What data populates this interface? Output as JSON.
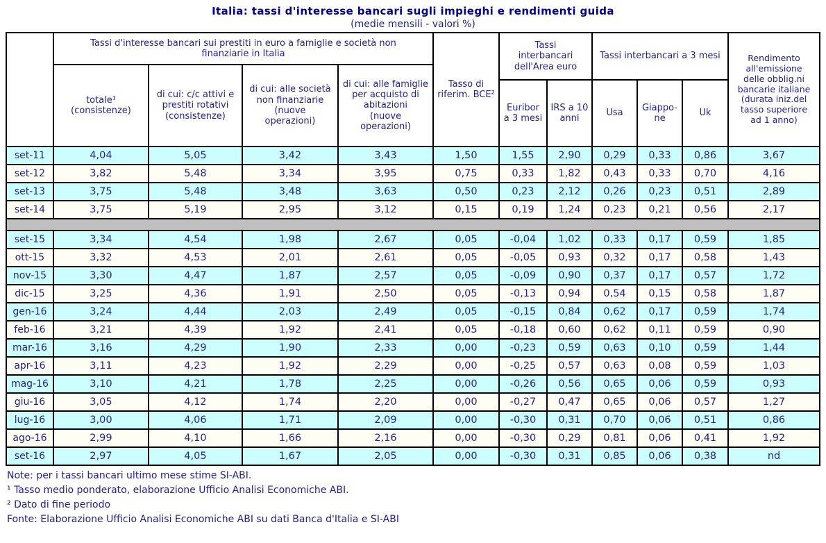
{
  "title": "Italia: tassi d'interesse bancari sugli impieghi e rendimenti guida",
  "subtitle": "(medie mensili - valori %)",
  "colors": {
    "title_navy": "#00008c",
    "text_navy": "#22228e",
    "row_highlight": "#ccffff",
    "row_plain": "#fefef4",
    "separator_gray": "#c0c0c0",
    "border_black": "#000000"
  },
  "header": {
    "group_loans": "Tassi d'interesse bancari sui prestiti in euro a famiglie e società non\nfinanziarie in Italia",
    "totale": "totale¹\n(consistenze)",
    "cc_attivi": "di cui: c/c attivi e\nprestiti rotativi\n(consistenze)",
    "societa": "di cui: alle società\nnon finanziarie\n(nuove\noperazioni)",
    "famiglie": "di cui: alle famiglie\nper acquisto di\nabitazioni\n(nuove\noperazioni)",
    "bce": "Tasso di\nriferim. BCE²",
    "group_euro": "Tassi\ninterbancari\ndell'Area euro",
    "euribor": "Euribor\na 3 mesi",
    "irs": "IRS a 10\nanni",
    "group_3m": "Tassi interbancari a 3 mesi",
    "usa": "Usa",
    "giappone": "Giappo-\nne",
    "uk": "Uk",
    "rendimento": "Rendimento\nall'emissione\ndelle obblig.ni\nbancarie italiane\n(durata iniz.del\ntasso superiore\nad 1 anno)"
  },
  "notes": [
    "Note: per i tassi bancari ultimo mese stime SI-ABI.",
    "¹ Tasso medio ponderato, elaborazione Ufficio Analisi Economiche ABI.",
    "² Dato di fine periodo",
    "Fonte: Elaborazione Ufficio Analisi Economiche ABI su dati Banca d'Italia e SI-ABI"
  ],
  "chart_data": {
    "type": "table",
    "title": "Italia: tassi d'interesse bancari sugli impieghi e rendimenti guida",
    "subtitle": "(medie mensili - valori %)",
    "columns": [
      "totale¹ (consistenze)",
      "di cui: c/c attivi e prestiti rotativi (consistenze)",
      "di cui: alle società non finanziarie (nuove operazioni)",
      "di cui: alle famiglie per acquisto di abitazioni (nuove operazioni)",
      "Tasso di riferim. BCE²",
      "Euribor a 3 mesi",
      "IRS a 10 anni",
      "Usa",
      "Giappo-ne",
      "Uk",
      "Rendimento all'emissione delle obblig.ni bancarie italiane (durata iniz.del tasso superiore ad 1 anno)"
    ],
    "rows_annual": [
      {
        "label": "set-11",
        "values": [
          "4,04",
          "5,05",
          "3,42",
          "3,43",
          "1,50",
          "1,55",
          "2,90",
          "0,29",
          "0,33",
          "0,86",
          "3,67"
        ]
      },
      {
        "label": "set-12",
        "values": [
          "3,82",
          "5,48",
          "3,34",
          "3,95",
          "0,75",
          "0,33",
          "1,82",
          "0,43",
          "0,33",
          "0,70",
          "4,16"
        ]
      },
      {
        "label": "set-13",
        "values": [
          "3,75",
          "5,48",
          "3,48",
          "3,63",
          "0,50",
          "0,23",
          "2,12",
          "0,26",
          "0,23",
          "0,51",
          "2,89"
        ]
      },
      {
        "label": "set-14",
        "values": [
          "3,75",
          "5,19",
          "2,95",
          "3,12",
          "0,15",
          "0,19",
          "1,24",
          "0,23",
          "0,21",
          "0,56",
          "2,17"
        ]
      }
    ],
    "rows_monthly": [
      {
        "label": "set-15",
        "values": [
          "3,34",
          "4,54",
          "1,98",
          "2,67",
          "0,05",
          "-0,04",
          "1,02",
          "0,33",
          "0,17",
          "0,59",
          "1,85"
        ]
      },
      {
        "label": "ott-15",
        "values": [
          "3,32",
          "4,53",
          "2,01",
          "2,61",
          "0,05",
          "-0,05",
          "0,93",
          "0,32",
          "0,17",
          "0,58",
          "1,43"
        ]
      },
      {
        "label": "nov-15",
        "values": [
          "3,30",
          "4,47",
          "1,87",
          "2,57",
          "0,05",
          "-0,09",
          "0,90",
          "0,37",
          "0,17",
          "0,57",
          "1,72"
        ]
      },
      {
        "label": "dic-15",
        "values": [
          "3,25",
          "4,36",
          "1,91",
          "2,50",
          "0,05",
          "-0,13",
          "0,94",
          "0,54",
          "0,15",
          "0,58",
          "1,87"
        ]
      },
      {
        "label": "gen-16",
        "values": [
          "3,24",
          "4,44",
          "2,03",
          "2,49",
          "0,05",
          "-0,15",
          "0,84",
          "0,62",
          "0,17",
          "0,59",
          "1,74"
        ]
      },
      {
        "label": "feb-16",
        "values": [
          "3,21",
          "4,39",
          "1,92",
          "2,41",
          "0,05",
          "-0,18",
          "0,60",
          "0,62",
          "0,11",
          "0,59",
          "0,90"
        ]
      },
      {
        "label": "mar-16",
        "values": [
          "3,16",
          "4,29",
          "1,90",
          "2,33",
          "0,00",
          "-0,23",
          "0,59",
          "0,63",
          "0,10",
          "0,59",
          "1,44"
        ]
      },
      {
        "label": "apr-16",
        "values": [
          "3,11",
          "4,23",
          "1,92",
          "2,29",
          "0,00",
          "-0,25",
          "0,57",
          "0,63",
          "0,08",
          "0,59",
          "1,03"
        ]
      },
      {
        "label": "mag-16",
        "values": [
          "3,10",
          "4,21",
          "1,78",
          "2,25",
          "0,00",
          "-0,26",
          "0,56",
          "0,65",
          "0,06",
          "0,59",
          "0,93"
        ]
      },
      {
        "label": "giu-16",
        "values": [
          "3,05",
          "4,12",
          "1,74",
          "2,20",
          "0,00",
          "-0,27",
          "0,47",
          "0,65",
          "0,06",
          "0,57",
          "1,27"
        ]
      },
      {
        "label": "lug-16",
        "values": [
          "3,00",
          "4,06",
          "1,71",
          "2,09",
          "0,00",
          "-0,30",
          "0,31",
          "0,70",
          "0,06",
          "0,51",
          "0,86"
        ]
      },
      {
        "label": "ago-16",
        "values": [
          "2,99",
          "4,10",
          "1,66",
          "2,16",
          "0,00",
          "-0,30",
          "0,29",
          "0,81",
          "0,06",
          "0,41",
          "1,92"
        ]
      },
      {
        "label": "set-16",
        "values": [
          "2,97",
          "4,05",
          "1,67",
          "2,05",
          "0,00",
          "-0,30",
          "0,31",
          "0,85",
          "0,06",
          "0,38",
          "nd"
        ]
      }
    ]
  }
}
